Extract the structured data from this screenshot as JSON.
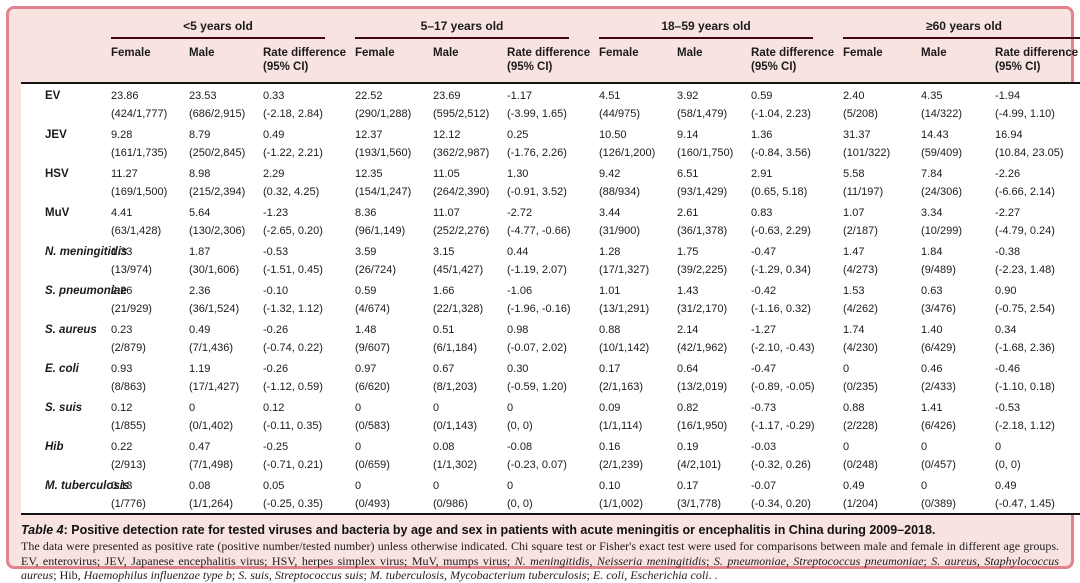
{
  "frame": {
    "border_color": "#e2838e",
    "background_color": "#f9e3e1",
    "heavy_rule_color": "#141414",
    "group_rule_color": "#42090e"
  },
  "table": {
    "groups": [
      "<5  years old",
      "5–17  years old",
      "18–59  years old",
      "≥60  years old"
    ],
    "subheaders": [
      "Female",
      "Male",
      "Rate difference\n(95% CI)"
    ],
    "rows": [
      {
        "label": "EV",
        "italic": false,
        "values": [
          "23.86",
          "23.53",
          "0.33",
          "22.52",
          "23.69",
          "-1.17",
          "4.51",
          "3.92",
          "0.59",
          "2.40",
          "4.35",
          "-1.94"
        ],
        "details": [
          "(424/1,777)",
          "(686/2,915)",
          "(-2.18, 2.84)",
          "(290/1,288)",
          "(595/2,512)",
          "(-3.99, 1.65)",
          "(44/975)",
          "(58/1,479)",
          "(-1.04, 2.23)",
          "(5/208)",
          "(14/322)",
          "(-4.99, 1.10)"
        ]
      },
      {
        "label": "JEV",
        "italic": false,
        "values": [
          "9.28",
          "8.79",
          "0.49",
          "12.37",
          "12.12",
          "0.25",
          "10.50",
          "9.14",
          "1.36",
          "31.37",
          "14.43",
          "16.94"
        ],
        "details": [
          "(161/1,735)",
          "(250/2,845)",
          "(-1.22, 2.21)",
          "(193/1,560)",
          "(362/2,987)",
          "(-1.76, 2.26)",
          "(126/1,200)",
          "(160/1,750)",
          "(-0.84, 3.56)",
          "(101/322)",
          "(59/409)",
          "(10.84, 23.05)"
        ]
      },
      {
        "label": "HSV",
        "italic": false,
        "values": [
          "11.27",
          "8.98",
          "2.29",
          "12.35",
          "11.05",
          "1.30",
          "9.42",
          "6.51",
          "2.91",
          "5.58",
          "7.84",
          "-2.26"
        ],
        "details": [
          "(169/1,500)",
          "(215/2,394)",
          "(0.32, 4.25)",
          "(154/1,247)",
          "(264/2,390)",
          "(-0.91, 3.52)",
          "(88/934)",
          "(93/1,429)",
          "(0.65, 5.18)",
          "(11/197)",
          "(24/306)",
          "(-6.66, 2.14)"
        ]
      },
      {
        "label": "MuV",
        "italic": false,
        "values": [
          "4.41",
          "5.64",
          "-1.23",
          "8.36",
          "11.07",
          "-2.72",
          "3.44",
          "2.61",
          "0.83",
          "1.07",
          "3.34",
          "-2.27"
        ],
        "details": [
          "(63/1,428)",
          "(130/2,306)",
          "(-2.65, 0.20)",
          "(96/1,149)",
          "(252/2,276)",
          "(-4.77, -0.66)",
          "(31/900)",
          "(36/1,378)",
          "(-0.63, 2.29)",
          "(2/187)",
          "(10/299)",
          "(-4.79, 0.24)"
        ]
      },
      {
        "label": "N. meningitidis",
        "italic": true,
        "values": [
          "1.33",
          "1.87",
          "-0.53",
          "3.59",
          "3.15",
          "0.44",
          "1.28",
          "1.75",
          "-0.47",
          "1.47",
          "1.84",
          "-0.38"
        ],
        "details": [
          "(13/974)",
          "(30/1,606)",
          "(-1.51, 0.45)",
          "(26/724)",
          "(45/1,427)",
          "(-1.19, 2.07)",
          "(17/1,327)",
          "(39/2,225)",
          "(-1.29, 0.34)",
          "(4/273)",
          "(9/489)",
          "(-2.23, 1.48)"
        ]
      },
      {
        "label": "S. pneumoniae",
        "italic": true,
        "values": [
          "2.26",
          "2.36",
          "-0.10",
          "0.59",
          "1.66",
          "-1.06",
          "1.01",
          "1.43",
          "-0.42",
          "1.53",
          "0.63",
          "0.90"
        ],
        "details": [
          "(21/929)",
          "(36/1,524)",
          "(-1.32, 1.12)",
          "(4/674)",
          "(22/1,328)",
          "(-1.96, -0.16)",
          "(13/1,291)",
          "(31/2,170)",
          "(-1.16, 0.32)",
          "(4/262)",
          "(3/476)",
          "(-0.75, 2.54)"
        ]
      },
      {
        "label": "S. aureus",
        "italic": true,
        "values": [
          "0.23",
          "0.49",
          "-0.26",
          "1.48",
          "0.51",
          "0.98",
          "0.88",
          "2.14",
          "-1.27",
          "1.74",
          "1.40",
          "0.34"
        ],
        "details": [
          "(2/879)",
          "(7/1,436)",
          "(-0.74, 0.22)",
          "(9/607)",
          "(6/1,184)",
          "(-0.07, 2.02)",
          "(10/1,142)",
          "(42/1,962)",
          "(-2.10, -0.43)",
          "(4/230)",
          "(6/429)",
          "(-1.68, 2.36)"
        ]
      },
      {
        "label": "E. coli",
        "italic": true,
        "values": [
          "0.93",
          "1.19",
          "-0.26",
          "0.97",
          "0.67",
          "0.30",
          "0.17",
          "0.64",
          "-0.47",
          "0",
          "0.46",
          "-0.46"
        ],
        "details": [
          "(8/863)",
          "(17/1,427)",
          "(-1.12, 0.59)",
          "(6/620)",
          "(8/1,203)",
          "(-0.59, 1.20)",
          "(2/1,163)",
          "(13/2,019)",
          "(-0.89, -0.05)",
          "(0/235)",
          "(2/433)",
          "(-1.10, 0.18)"
        ]
      },
      {
        "label": "S. suis",
        "italic": true,
        "values": [
          "0.12",
          "0",
          "0.12",
          "0",
          "0",
          "0",
          "0.09",
          "0.82",
          "-0.73",
          "0.88",
          "1.41",
          "-0.53"
        ],
        "details": [
          "(1/855)",
          "(0/1,402)",
          "(-0.11, 0.35)",
          "(0/583)",
          "(0/1,143)",
          "(0, 0)",
          "(1/1,114)",
          "(16/1,950)",
          "(-1.17, -0.29)",
          "(2/228)",
          "(6/426)",
          "(-2.18, 1.12)"
        ]
      },
      {
        "label": "Hib",
        "italic": true,
        "values": [
          "0.22",
          "0.47",
          "-0.25",
          "0",
          "0.08",
          "-0.08",
          "0.16",
          "0.19",
          "-0.03",
          "0",
          "0",
          "0"
        ],
        "details": [
          "(2/913)",
          "(7/1,498)",
          "(-0.71, 0.21)",
          "(0/659)",
          "(1/1,302)",
          "(-0.23, 0.07)",
          "(2/1,239)",
          "(4/2,101)",
          "(-0.32, 0.26)",
          "(0/248)",
          "(0/457)",
          "(0, 0)"
        ]
      },
      {
        "label": "M. tuberculosis",
        "italic": true,
        "values": [
          "0.13",
          "0.08",
          "0.05",
          "0",
          "0",
          "0",
          "0.10",
          "0.17",
          "-0.07",
          "0.49",
          "0",
          "0.49"
        ],
        "details": [
          "(1/776)",
          "(1/1,264)",
          "(-0.25, 0.35)",
          "(0/493)",
          "(0/986)",
          "(0, 0)",
          "(1/1,002)",
          "(3/1,778)",
          "(-0.34, 0.20)",
          "(1/204)",
          "(0/389)",
          "(-0.47, 1.45)"
        ]
      }
    ]
  },
  "caption": {
    "label": "Table 4",
    "text": ": Positive detection rate for tested viruses and bacteria by age and sex in patients with acute meningitis or encephalitis in China during 2009–2018."
  },
  "footnote_segments": [
    {
      "t": "The data were presented as positive rate (positive number/tested number) unless otherwise indicated. Chi square test or Fisher's exact test were used for comparisons between male and female in different age groups. EV, enterovirus; JEV, Japanese encephalitis virus; HSV, herpes simplex virus; MuV, mumps virus; ",
      "i": false
    },
    {
      "t": "N. meningitidis, Neisseria meningitidis",
      "i": true
    },
    {
      "t": "; ",
      "i": false
    },
    {
      "t": "S. pneumoniae,  Streptococcus pneumoniae",
      "i": true
    },
    {
      "t": "; ",
      "i": false
    },
    {
      "t": "S. aureus, Staphylococcus aureus",
      "i": true
    },
    {
      "t": "; Hib, ",
      "i": false
    },
    {
      "t": "Haemophilus influenzae type b",
      "i": true
    },
    {
      "t": "; ",
      "i": false
    },
    {
      "t": "S. suis, Streptococcus suis",
      "i": true
    },
    {
      "t": "; ",
      "i": false
    },
    {
      "t": "M. tuberculosis, Mycobacterium tuberculosis",
      "i": true
    },
    {
      "t": "; ",
      "i": false
    },
    {
      "t": "E. coli, Escherichia coli",
      "i": true
    },
    {
      "t": ". .",
      "i": false
    }
  ]
}
